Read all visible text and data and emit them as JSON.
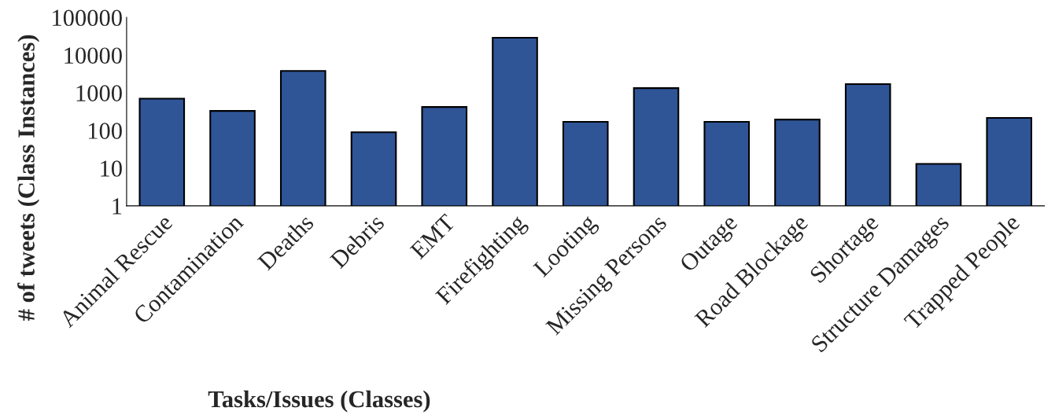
{
  "chart_data": {
    "type": "bar",
    "xlabel": "Tasks/Issues (Classes)",
    "ylabel": "# of tweets (Class Instances)",
    "categories": [
      "Animal Rescue",
      "Contamination",
      "Deaths",
      "Debris",
      "EMT",
      "Firefighting",
      "Looting",
      "Missing Persons",
      "Outage",
      "Road Blockage",
      "Shortage",
      "Structure Damages",
      "Trapped People"
    ],
    "values": [
      700,
      330,
      3800,
      90,
      420,
      29000,
      170,
      1330,
      170,
      195,
      1700,
      13,
      215
    ],
    "color": "#2f5597",
    "log": true,
    "ylim": [
      1,
      100000
    ],
    "yticks": [
      1,
      10,
      100,
      1000,
      10000,
      100000
    ],
    "grid": false,
    "legend": false
  }
}
